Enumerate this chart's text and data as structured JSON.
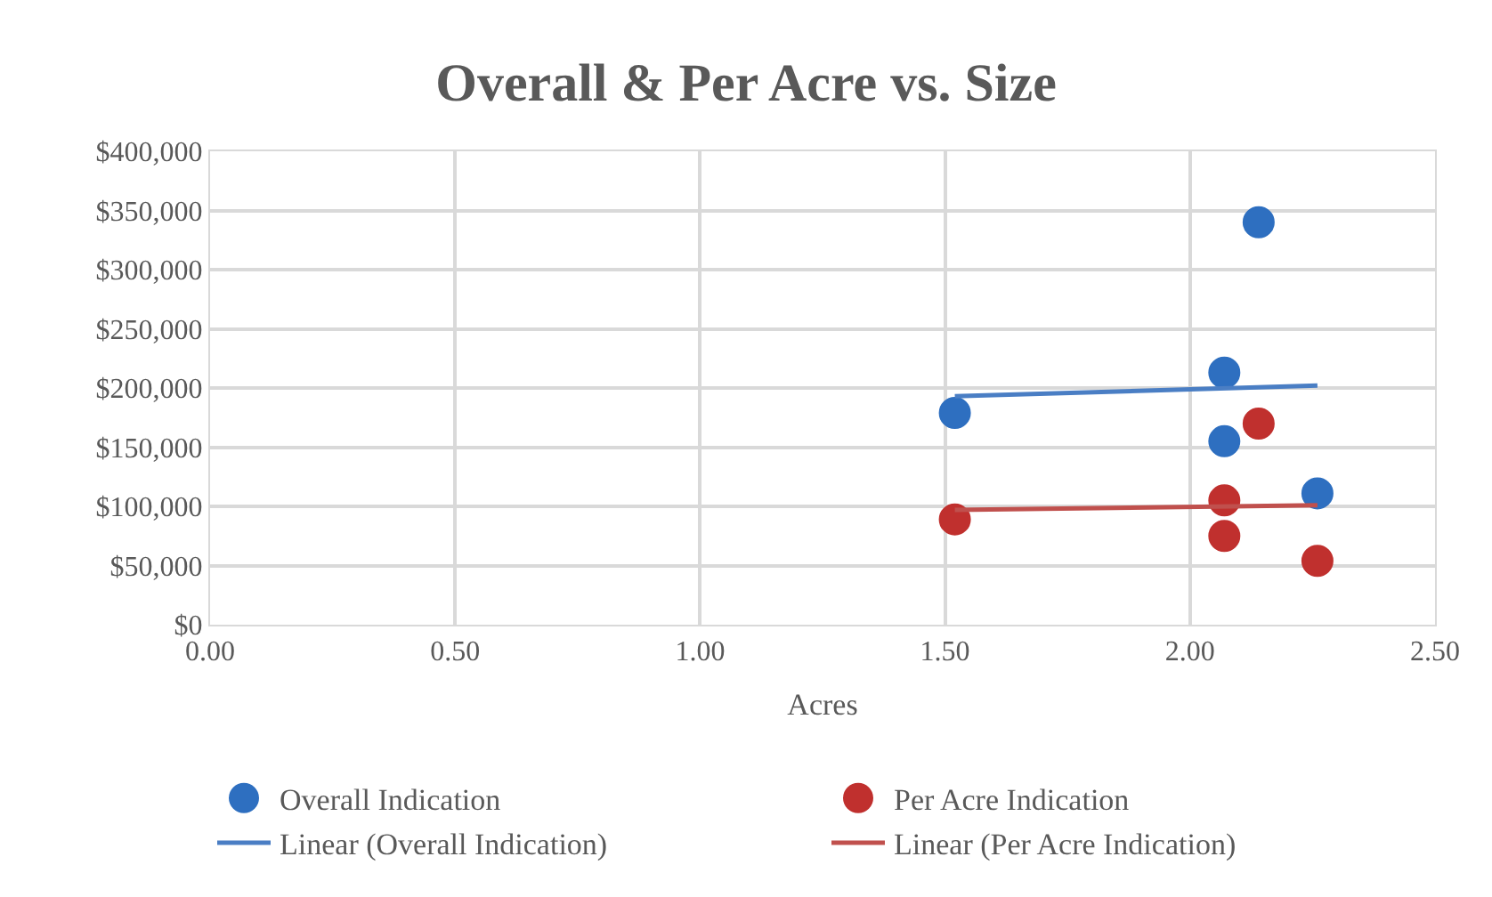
{
  "chart_data": {
    "type": "scatter",
    "title": "Overall & Per Acre vs. Size",
    "xlabel": "Acres",
    "series": [
      {
        "name": "Overall Indication",
        "marker": "circle",
        "color": "#2e6fc0",
        "x": [
          1.52,
          2.07,
          2.07,
          2.14,
          2.26
        ],
        "values": [
          179000,
          213000,
          155000,
          340000,
          111000
        ]
      },
      {
        "name": "Per Acre Indication",
        "marker": "circle",
        "color": "#c0302e",
        "x": [
          1.52,
          2.07,
          2.07,
          2.14,
          2.26
        ],
        "values": [
          89000,
          105000,
          75000,
          170000,
          54000
        ]
      },
      {
        "name": "Linear (Overall Indication)",
        "type": "line",
        "marker": "none",
        "color": "#4a7ec4",
        "x": [
          1.52,
          2.26
        ],
        "values": [
          193000,
          202000
        ]
      },
      {
        "name": "Linear (Per Acre Indication)",
        "type": "line",
        "marker": "none",
        "color": "#c0504d",
        "x": [
          1.52,
          2.26
        ],
        "values": [
          97000,
          101000
        ]
      }
    ],
    "xlim": [
      0,
      2.5
    ],
    "xticks": [
      {
        "value": 0,
        "label": "0.00"
      },
      {
        "value": 0.5,
        "label": "0.50"
      },
      {
        "value": 1,
        "label": "1.00"
      },
      {
        "value": 1.5,
        "label": "1.50"
      },
      {
        "value": 2,
        "label": "2.00"
      },
      {
        "value": 2.5,
        "label": "2.50"
      }
    ],
    "ylim": [
      0,
      400000
    ],
    "yticks": [
      {
        "value": 0,
        "label": "$0"
      },
      {
        "value": 50000,
        "label": "$50,000"
      },
      {
        "value": 100000,
        "label": "$100,000"
      },
      {
        "value": 150000,
        "label": "$150,000"
      },
      {
        "value": 200000,
        "label": "$200,000"
      },
      {
        "value": 250000,
        "label": "$250,000"
      },
      {
        "value": 300000,
        "label": "$300,000"
      },
      {
        "value": 350000,
        "label": "$350,000"
      },
      {
        "value": 400000,
        "label": "$400,000"
      }
    ],
    "grid": true,
    "legend": "bottom",
    "line_style": "solid"
  }
}
